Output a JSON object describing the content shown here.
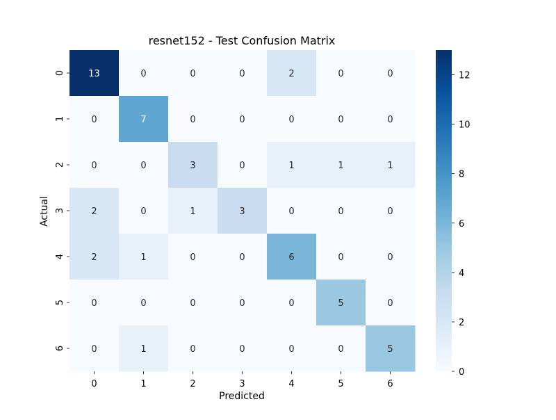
{
  "chart_data": {
    "type": "heatmap",
    "title": "resnet152 - Test Confusion Matrix",
    "xlabel": "Predicted",
    "ylabel": "Actual",
    "x_categories": [
      "0",
      "1",
      "2",
      "3",
      "4",
      "5",
      "6"
    ],
    "y_categories": [
      "0",
      "1",
      "2",
      "3",
      "4",
      "5",
      "6"
    ],
    "values": [
      [
        13,
        0,
        0,
        0,
        2,
        0,
        0
      ],
      [
        0,
        7,
        0,
        0,
        0,
        0,
        0
      ],
      [
        0,
        0,
        3,
        0,
        1,
        1,
        1
      ],
      [
        2,
        0,
        1,
        3,
        0,
        0,
        0
      ],
      [
        2,
        1,
        0,
        0,
        6,
        0,
        0
      ],
      [
        0,
        0,
        0,
        0,
        0,
        5,
        0
      ],
      [
        0,
        1,
        0,
        0,
        0,
        0,
        5
      ]
    ],
    "colormap": "Blues",
    "colorbar": {
      "range": [
        0,
        13
      ],
      "ticks": [
        0,
        2,
        4,
        6,
        8,
        10,
        12
      ]
    },
    "annotations": true
  }
}
